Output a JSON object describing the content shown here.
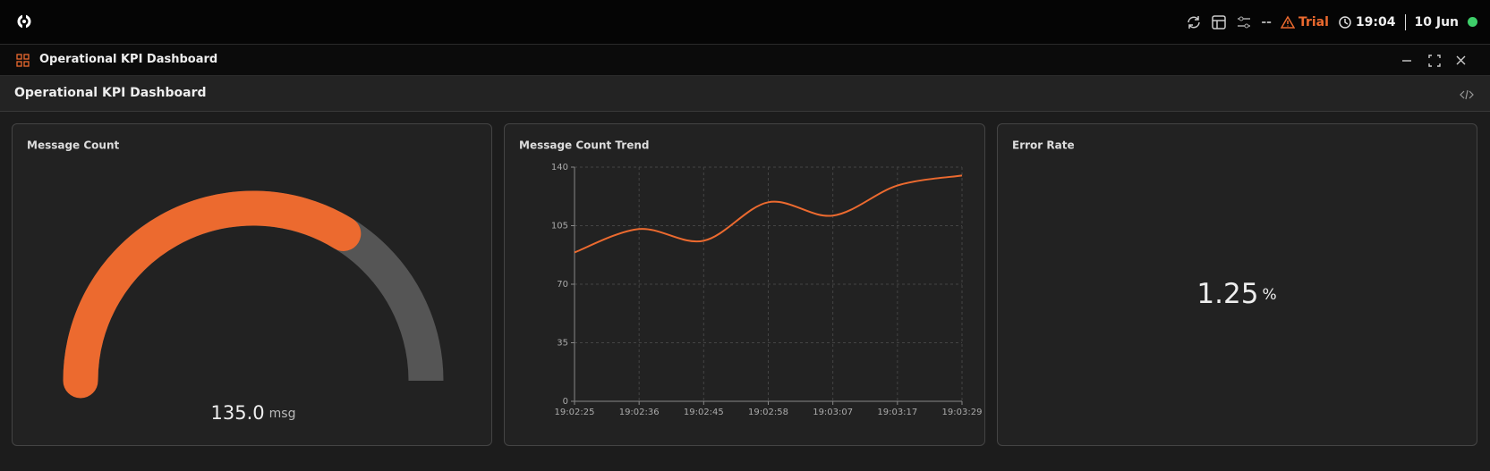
{
  "topbar": {
    "status": "--",
    "trial": "Trial",
    "time": "19:04",
    "date": "10 Jun"
  },
  "window": {
    "title": "Operational KPI Dashboard"
  },
  "dashboard": {
    "title": "Operational KPI Dashboard"
  },
  "panels": [
    {
      "type": "gauge",
      "title": "Message Count",
      "value": 135,
      "value_label": "135.0",
      "unit": "msg",
      "range": [
        0,
        200
      ],
      "color": "#ec6a2f",
      "track_color": "#555555"
    },
    {
      "type": "line",
      "title": "Message Count Trend",
      "categories": [
        "19:02:25",
        "19:02:36",
        "19:02:45",
        "19:02:58",
        "19:03:07",
        "19:03:17",
        "19:03:29"
      ],
      "values": [
        89,
        103,
        96,
        119,
        111,
        129,
        135
      ],
      "color": "#ec6a2f",
      "ylim": [
        0,
        140
      ],
      "yticks": [
        0,
        35,
        70,
        105,
        140
      ],
      "grid": true
    },
    {
      "type": "stat",
      "title": "Error Rate",
      "value": 1.25,
      "unit": "%"
    }
  ]
}
